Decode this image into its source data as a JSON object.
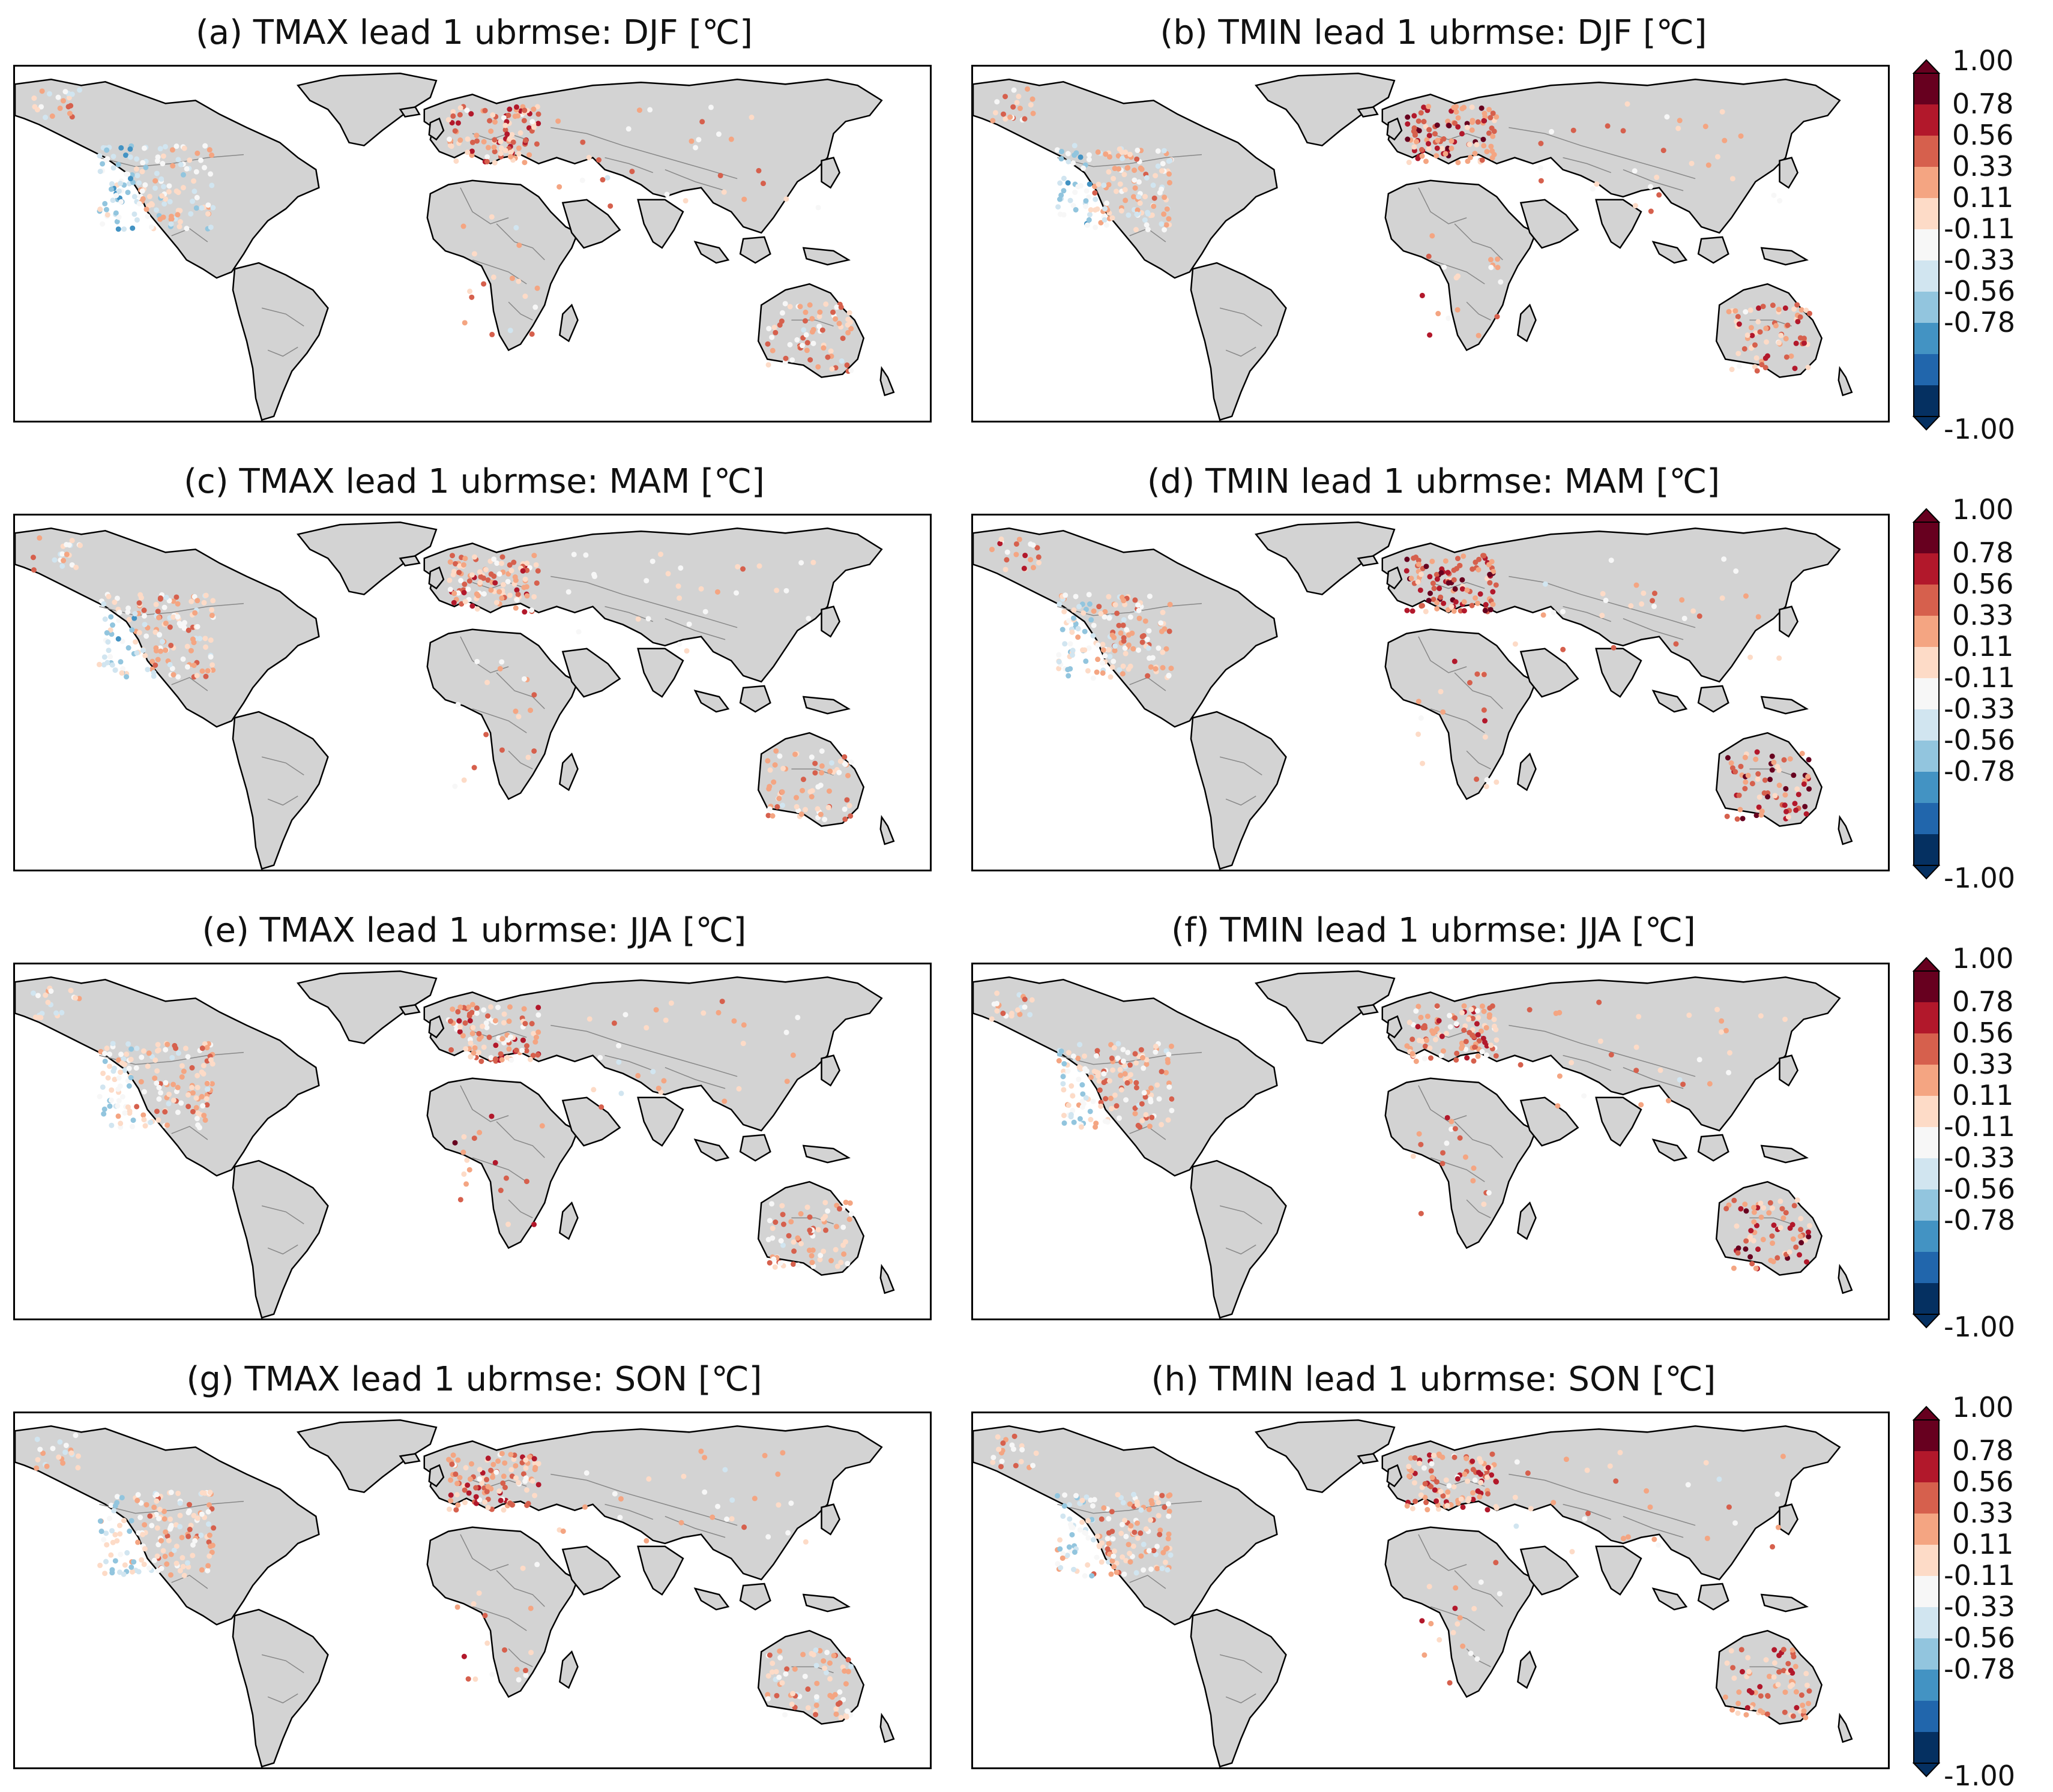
{
  "panels": [
    {
      "id": "a",
      "title": "(a) TMAX lead 1 ubrmse: DJF [℃]"
    },
    {
      "id": "b",
      "title": "(b) TMIN lead 1 ubrmse: DJF [℃]"
    },
    {
      "id": "c",
      "title": "(c) TMAX lead 1 ubrmse: MAM [℃]"
    },
    {
      "id": "d",
      "title": "(d) TMIN lead 1 ubrmse: MAM [℃]"
    },
    {
      "id": "e",
      "title": "(e) TMAX lead 1 ubrmse: JJA [℃]"
    },
    {
      "id": "f",
      "title": "(f) TMIN lead 1 ubrmse: JJA [℃]"
    },
    {
      "id": "g",
      "title": "(g) TMAX lead 1 ubrmse: SON [℃]"
    },
    {
      "id": "h",
      "title": "(h) TMIN lead 1 ubrmse: SON [℃]"
    }
  ],
  "colorbar": {
    "ticks": [
      "1.00",
      "0.78",
      "0.56",
      "0.33",
      "0.11",
      "-0.11",
      "-0.33",
      "-0.56",
      "-0.78",
      "-1.00"
    ],
    "colors": [
      "#67001f",
      "#b2182b",
      "#d6604d",
      "#f4a582",
      "#fddbc7",
      "#f7f7f7",
      "#d1e5f0",
      "#92c5de",
      "#4393c3",
      "#2166ac",
      "#053061"
    ]
  },
  "map_colors": {
    "land": "#d3d3d3",
    "coast": "#000000",
    "border": "#888888"
  }
}
